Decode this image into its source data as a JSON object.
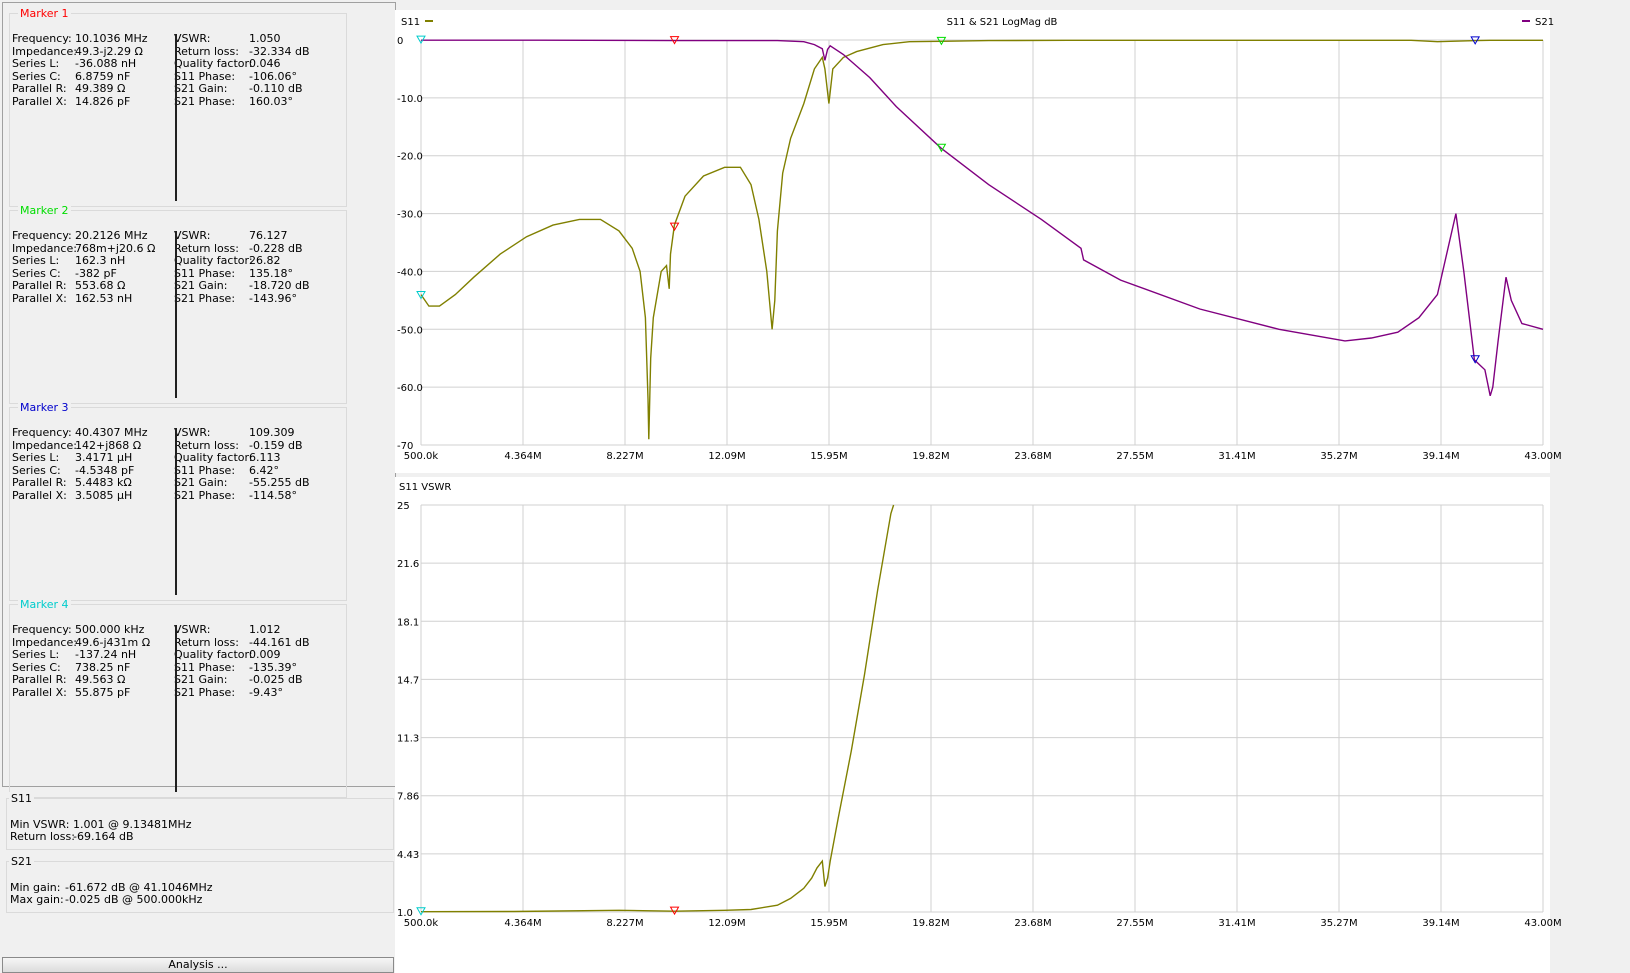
{
  "markers": [
    {
      "title": "Marker 1",
      "color": "#ff0000",
      "left": [
        [
          "Frequency:",
          "10.1036 MHz"
        ],
        [
          "Impedance:",
          "49.3-j2.29 Ω"
        ],
        [
          "Series L:",
          "-36.088 nH"
        ],
        [
          "Series C:",
          "6.8759 nF"
        ],
        [
          "Parallel R:",
          "49.389 Ω"
        ],
        [
          "Parallel X:",
          "14.826 pF"
        ]
      ],
      "right": [
        [
          "VSWR:",
          "1.050"
        ],
        [
          "Return loss:",
          "-32.334 dB"
        ],
        [
          "Quality factor:",
          "0.046"
        ],
        [
          "S11 Phase:",
          "-106.06°"
        ],
        [
          "S21 Gain:",
          "-0.110 dB"
        ],
        [
          "S21 Phase:",
          "160.03°"
        ]
      ]
    },
    {
      "title": "Marker 2",
      "color": "#00dd00",
      "left": [
        [
          "Frequency:",
          "20.2126 MHz"
        ],
        [
          "Impedance:",
          "768m+j20.6 Ω"
        ],
        [
          "Series L:",
          "162.3 nH"
        ],
        [
          "Series C:",
          "-382 pF"
        ],
        [
          "Parallel R:",
          "553.68 Ω"
        ],
        [
          "Parallel X:",
          "162.53 nH"
        ]
      ],
      "right": [
        [
          "VSWR:",
          "76.127"
        ],
        [
          "Return loss:",
          "-0.228 dB"
        ],
        [
          "Quality factor:",
          "26.82"
        ],
        [
          "S11 Phase:",
          "135.18°"
        ],
        [
          "S21 Gain:",
          "-18.720 dB"
        ],
        [
          "S21 Phase:",
          "-143.96°"
        ]
      ]
    },
    {
      "title": "Marker 3",
      "color": "#0000cc",
      "left": [
        [
          "Frequency:",
          "40.4307 MHz"
        ],
        [
          "Impedance:",
          "142+j868 Ω"
        ],
        [
          "Series L:",
          "3.4171 µH"
        ],
        [
          "Series C:",
          "-4.5348 pF"
        ],
        [
          "Parallel R:",
          "5.4483 kΩ"
        ],
        [
          "Parallel X:",
          "3.5085 µH"
        ]
      ],
      "right": [
        [
          "VSWR:",
          "109.309"
        ],
        [
          "Return loss:",
          "-0.159 dB"
        ],
        [
          "Quality factor:",
          "6.113"
        ],
        [
          "S11 Phase:",
          "6.42°"
        ],
        [
          "S21 Gain:",
          "-55.255 dB"
        ],
        [
          "S21 Phase:",
          "-114.58°"
        ]
      ]
    },
    {
      "title": "Marker 4",
      "color": "#00cccc",
      "left": [
        [
          "Frequency:",
          "500.000 kHz"
        ],
        [
          "Impedance:",
          "49.6-j431m Ω"
        ],
        [
          "Series L:",
          "-137.24 nH"
        ],
        [
          "Series C:",
          "738.25 nF"
        ],
        [
          "Parallel R:",
          "49.563 Ω"
        ],
        [
          "Parallel X:",
          "55.875 pF"
        ]
      ],
      "right": [
        [
          "VSWR:",
          "1.012"
        ],
        [
          "Return loss:",
          "-44.161 dB"
        ],
        [
          "Quality factor:",
          "0.009"
        ],
        [
          "S11 Phase:",
          "-135.39°"
        ],
        [
          "S21 Gain:",
          "-0.025 dB"
        ],
        [
          "S21 Phase:",
          "-9.43°"
        ]
      ]
    }
  ],
  "s11_summary": {
    "title": "S11",
    "rows": [
      [
        "Min VSWR:",
        "1.001 @ 9.13481MHz"
      ],
      [
        "Return loss:",
        "-69.164 dB"
      ]
    ]
  },
  "s21_summary": {
    "title": "S21",
    "rows": [
      [
        "Min gain:",
        "-61.672 dB @ 41.1046MHz"
      ],
      [
        "Max gain:",
        "-0.025 dB @ 500.000kHz"
      ]
    ]
  },
  "analysis_button": "Analysis ...",
  "chart_data": [
    {
      "type": "line",
      "title": "S11 & S21 LogMag dB",
      "legend": [
        "S11",
        "S21"
      ],
      "xlabels": [
        "500.0k",
        "4.364M",
        "8.227M",
        "12.09M",
        "15.95M",
        "19.82M",
        "23.68M",
        "27.55M",
        "31.41M",
        "35.27M",
        "39.14M",
        "43.00M"
      ],
      "xlim": [
        0.5,
        43.0
      ],
      "ylabels": [
        "0",
        "-10.0",
        "-20.0",
        "-30.0",
        "-40.0",
        "-50.0",
        "-60.0",
        "-70"
      ],
      "ylim": [
        -70,
        0
      ],
      "colors": {
        "s11": "#808000",
        "s21": "#800080"
      },
      "series": [
        {
          "name": "S11",
          "x": [
            0.5,
            0.8,
            1.2,
            1.8,
            2.5,
            3.5,
            4.5,
            5.5,
            6.5,
            7.3,
            8.0,
            8.5,
            8.8,
            9.0,
            9.1,
            9.13,
            9.2,
            9.3,
            9.6,
            9.8,
            9.9,
            9.95,
            10.1,
            10.5,
            11.2,
            12.0,
            12.6,
            13.0,
            13.3,
            13.6,
            13.8,
            13.9,
            14.0,
            14.2,
            14.5,
            15.0,
            15.4,
            15.7,
            15.8,
            15.95,
            16.1,
            16.5,
            17.0,
            18.0,
            19.0,
            20.2,
            22,
            25,
            30,
            35,
            38,
            39,
            40.5,
            41,
            42,
            43
          ],
          "y": [
            -44,
            -46,
            -46,
            -44,
            -41,
            -37,
            -34,
            -32,
            -31,
            -31,
            -33,
            -36,
            -40,
            -48,
            -62,
            -69,
            -55,
            -48,
            -40,
            -39,
            -43,
            -37,
            -32,
            -27,
            -23.5,
            -22,
            -22,
            -25,
            -31,
            -40,
            -50,
            -45,
            -33,
            -23,
            -17,
            -11,
            -5,
            -3,
            -5,
            -11,
            -5,
            -3,
            -2,
            -0.8,
            -0.3,
            -0.23,
            -0.1,
            -0.05,
            -0.05,
            -0.05,
            -0.05,
            -0.3,
            -0.1,
            -0.05,
            -0.05,
            -0.05
          ]
        },
        {
          "name": "S21",
          "x": [
            0.5,
            5,
            10.1,
            14,
            15.0,
            15.4,
            15.7,
            15.8,
            15.9,
            16.0,
            16.5,
            17.5,
            18.5,
            20.2,
            22,
            24,
            25.5,
            25.6,
            27,
            30,
            33,
            35.5,
            36.5,
            37.5,
            38.3,
            39.0,
            39.7,
            40.0,
            40.4,
            40.8,
            41.0,
            41.1,
            41.3,
            41.6,
            41.8,
            42.2,
            43
          ],
          "y": [
            -0.03,
            -0.03,
            -0.11,
            -0.1,
            -0.3,
            -0.8,
            -1.5,
            -3.5,
            -1.6,
            -1.0,
            -2.5,
            -6.5,
            -11.5,
            -18.7,
            -25,
            -31,
            -36,
            -38,
            -41.5,
            -46.5,
            -50,
            -52,
            -51.5,
            -50.5,
            -48,
            -44,
            -30,
            -40,
            -55.3,
            -57,
            -61.5,
            -60,
            -52,
            -41,
            -45,
            -49,
            -50
          ]
        }
      ],
      "markers": [
        {
          "label": "1",
          "color": "#ff0000",
          "x": 10.1036,
          "s11": -32.334,
          "s21": -0.11
        },
        {
          "label": "2",
          "color": "#00dd00",
          "x": 20.2126,
          "s11": -0.228,
          "s21": -18.72
        },
        {
          "label": "3",
          "color": "#0000cc",
          "x": 40.4307,
          "s11": -0.159,
          "s21": -55.255
        },
        {
          "label": "4",
          "color": "#00cccc",
          "x": 0.5,
          "s11": -44.161,
          "s21": -0.025
        }
      ]
    },
    {
      "type": "line",
      "title": "S11 VSWR",
      "xlabels": [
        "500.0k",
        "4.364M",
        "8.227M",
        "12.09M",
        "15.95M",
        "19.82M",
        "23.68M",
        "27.55M",
        "31.41M",
        "35.27M",
        "39.14M",
        "43.00M"
      ],
      "xlim": [
        0.5,
        43.0
      ],
      "ylabels": [
        "25",
        "21.6",
        "18.1",
        "14.7",
        "11.3",
        "7.86",
        "4.43",
        "1.0"
      ],
      "ylim": [
        1.0,
        25
      ],
      "colors": {
        "s11": "#808000"
      },
      "series": [
        {
          "name": "S11 VSWR",
          "x": [
            0.5,
            4,
            8,
            10.1,
            12,
            13.0,
            14.0,
            14.5,
            15.0,
            15.3,
            15.5,
            15.7,
            15.8,
            15.9,
            16.0,
            16.3,
            16.8,
            17.3,
            17.8,
            18.3,
            18.4
          ],
          "y": [
            1.02,
            1.03,
            1.1,
            1.05,
            1.1,
            1.15,
            1.4,
            1.8,
            2.4,
            3.0,
            3.6,
            4.0,
            2.5,
            3.0,
            4.0,
            6.5,
            10.5,
            15,
            20,
            24.5,
            25
          ]
        }
      ],
      "markers": [
        {
          "label": "1",
          "color": "#ff0000",
          "x": 10.1036,
          "y": 1.05
        },
        {
          "label": "4",
          "color": "#00cccc",
          "x": 0.5,
          "y": 1.012
        }
      ]
    }
  ]
}
